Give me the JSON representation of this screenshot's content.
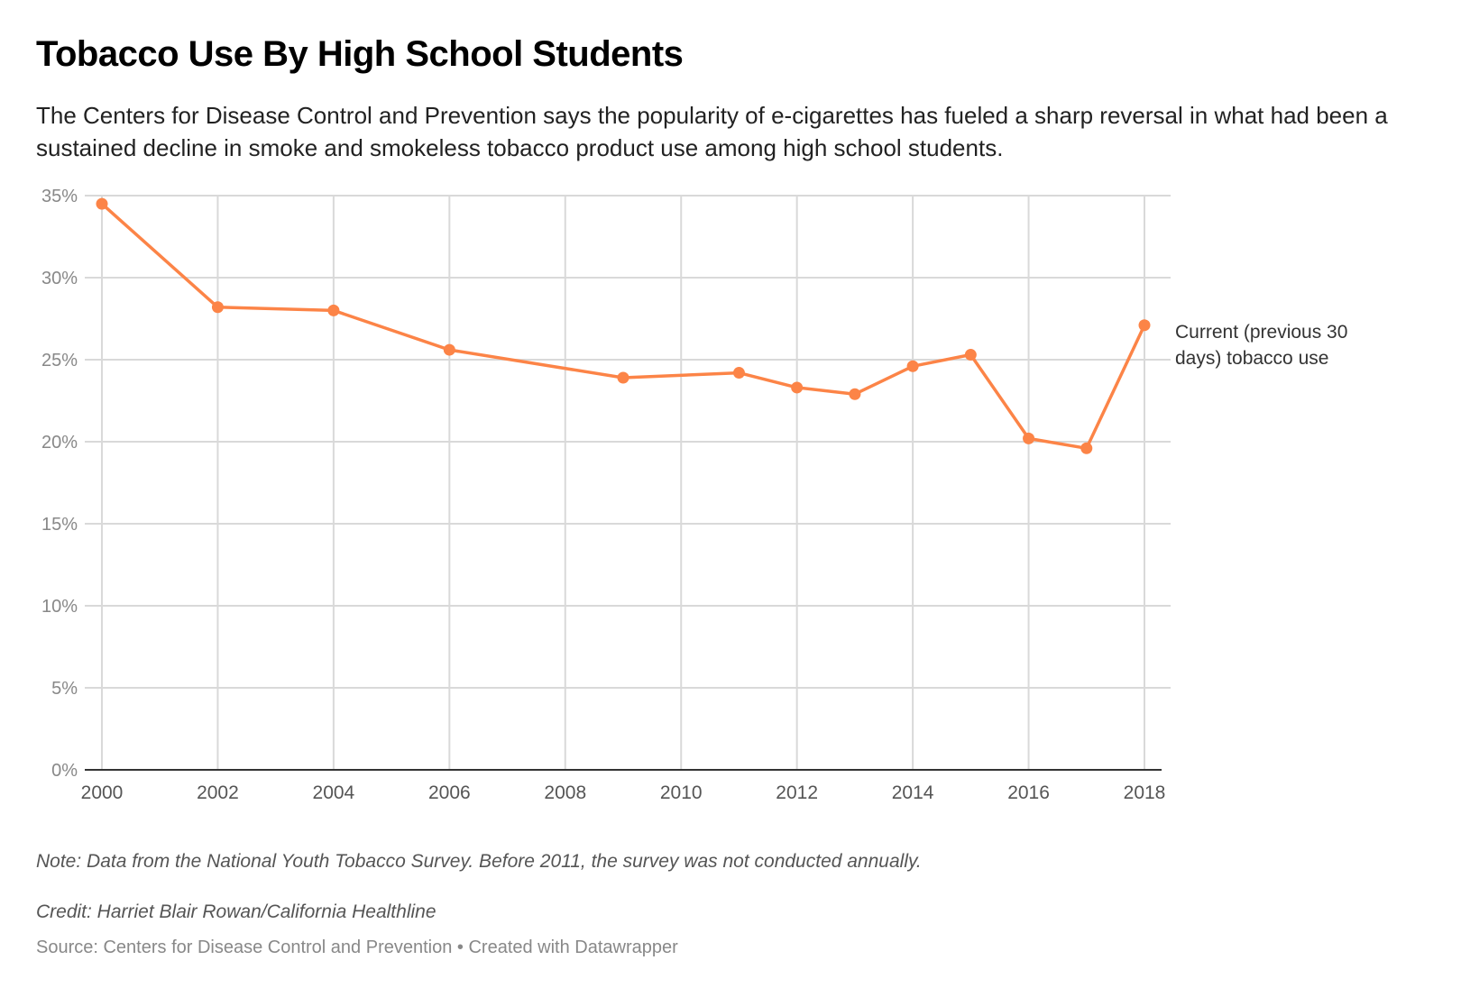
{
  "header": {
    "title": "Tobacco Use By High School Students",
    "subtitle": "The Centers for Disease Control and Prevention says the popularity of e-cigarettes has fueled a sharp reversal in what had been a sustained decline in smoke and smokeless tobacco product use among high school students."
  },
  "footer": {
    "note": "Note: Data from the National Youth Tobacco Survey. Before 2011, the survey was not conducted annually.",
    "credit": "Credit: Harriet Blair Rowan/California Healthline",
    "source": "Source: Centers for Disease Control and Prevention • Created with Datawrapper"
  },
  "colors": {
    "line": "#fc8447",
    "grid": "#d9d9d9",
    "axis": "#333333"
  },
  "chart_data": {
    "type": "line",
    "title": "Tobacco Use By High School Students",
    "xlabel": "",
    "ylabel": "",
    "x": [
      2000,
      2002,
      2004,
      2006,
      2009,
      2011,
      2012,
      2013,
      2014,
      2015,
      2016,
      2017,
      2018
    ],
    "series": [
      {
        "name": "Current (previous 30 days) tobacco use",
        "label_lines": [
          "Current (previous 30",
          "days) tobacco use"
        ],
        "values": [
          34.5,
          28.2,
          28.0,
          25.6,
          23.9,
          24.2,
          23.3,
          22.9,
          24.6,
          25.3,
          20.2,
          19.6,
          27.1
        ]
      }
    ],
    "xlim": [
      2000,
      2018
    ],
    "ylim": [
      0,
      35
    ],
    "x_ticks": [
      2000,
      2002,
      2004,
      2006,
      2008,
      2010,
      2012,
      2014,
      2016,
      2018
    ],
    "x_tick_labels": [
      "2000",
      "2002",
      "2004",
      "2006",
      "2008",
      "2010",
      "2012",
      "2014",
      "2016",
      "2018"
    ],
    "y_ticks": [
      0,
      5,
      10,
      15,
      20,
      25,
      30,
      35
    ],
    "y_tick_labels": [
      "0%",
      "5%",
      "10%",
      "15%",
      "20%",
      "25%",
      "30%",
      "35%"
    ],
    "grid": true,
    "legend": "direct label at line end (right)"
  }
}
